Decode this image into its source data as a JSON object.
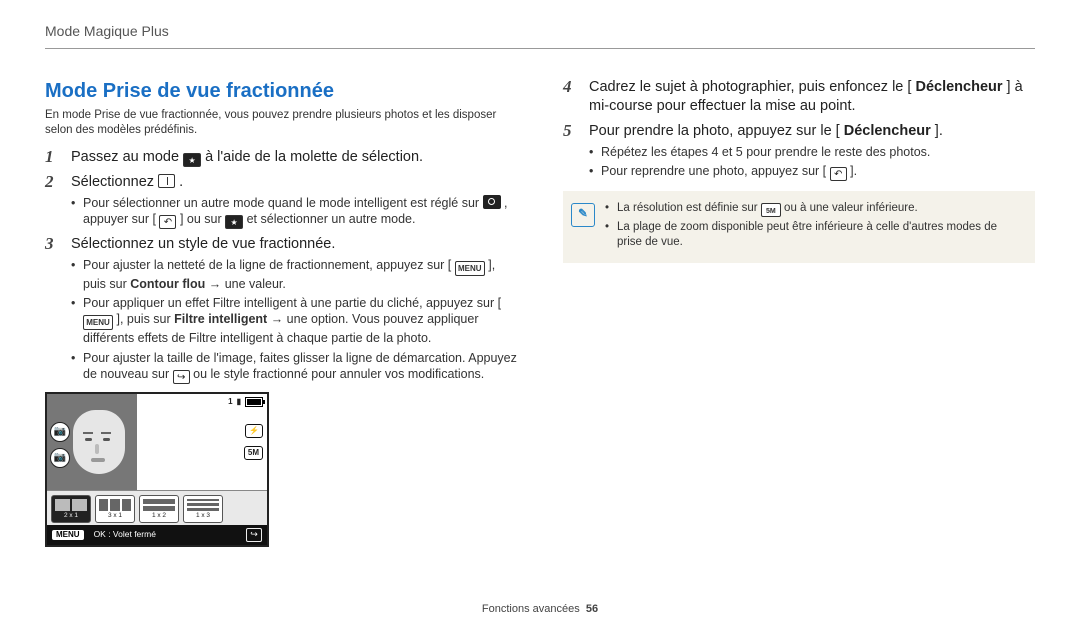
{
  "breadcrumb": "Mode Magique Plus",
  "left": {
    "section_title": "Mode Prise de vue fractionnée",
    "intro": "En mode Prise de vue fractionnée, vous pouvez prendre plusieurs photos et les disposer selon des modèles prédéfinis.",
    "step1_a": "Passez au mode ",
    "step1_b": " à l'aide de la molette de sélection.",
    "step2_a": "Sélectionnez ",
    "step2_b": ".",
    "step2_sub1_a": "Pour sélectionner un autre mode quand le mode intelligent est réglé sur ",
    "step2_sub1_b": ", appuyer sur [",
    "step2_sub1_c": "] ou sur ",
    "step2_sub1_d": " et sélectionner un autre mode.",
    "step3": "Sélectionnez un style de vue fractionnée.",
    "step3_sub1_a": "Pour ajuster la netteté de la ligne de fractionnement, appuyez sur [",
    "step3_sub1_b": "], puis sur ",
    "step3_sub1_c": " → une valeur.",
    "step3_sub1_bold": "Contour flou",
    "step3_sub2_a": "Pour appliquer un effet Filtre intelligent à une partie du cliché, appuyez sur [",
    "step3_sub2_b": "], puis sur ",
    "step3_sub2_bold": "Filtre intelligent",
    "step3_sub2_c": " → une option. Vous pouvez appliquer différents effets de Filtre intelligent à chaque partie de la photo.",
    "step3_sub3_a": "Pour ajuster la taille de l'image, faites glisser la ligne de démarcation. Appuyez de nouveau sur ",
    "step3_sub3_b": " ou le style fractionné pour annuler vos modifications.",
    "menu_label": "MENU",
    "lcd": {
      "status_count": "1",
      "opt1": "2 x 1",
      "opt2": "3 x 1",
      "opt3": "1 x 2",
      "opt4": "1 x 3",
      "bottom_menu": "MENU",
      "bottom_text": "OK : Volet fermé"
    }
  },
  "right": {
    "step4_a": "Cadrez le sujet à photographier, puis enfoncez le [",
    "step4_bold": "Déclencheur",
    "step4_b": "] à mi-course pour effectuer la mise au point.",
    "step5_a": "Pour prendre la photo, appuyez sur le [",
    "step5_bold": "Déclencheur",
    "step5_b": "].",
    "step5_sub1": "Répétez les étapes 4 et 5 pour prendre le reste des photos.",
    "step5_sub2_a": "Pour reprendre une photo, appuyez sur [",
    "step5_sub2_b": "].",
    "note1_a": "La résolution est définie sur ",
    "note1_b": " ou à une valeur inférieure.",
    "note2": "La plage de zoom disponible peut être inférieure à celle d'autres modes de prise de vue."
  },
  "footer": {
    "label": "Fonctions avancées",
    "page": "56"
  }
}
